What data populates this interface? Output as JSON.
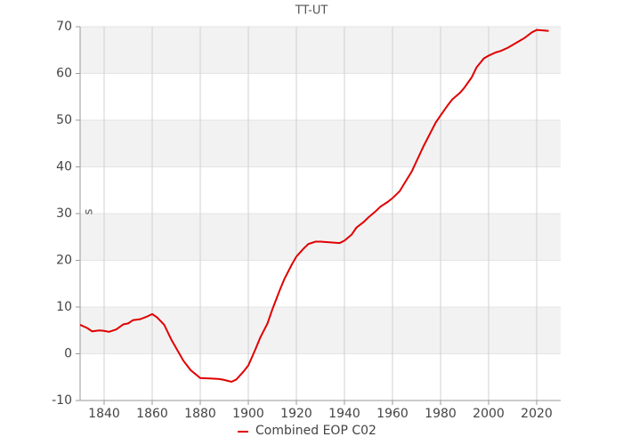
{
  "chart_data": {
    "type": "line",
    "title": "TT-UT",
    "y_label": "s",
    "x": [
      1830,
      1833,
      1835,
      1838,
      1840,
      1842,
      1845,
      1848,
      1850,
      1852,
      1855,
      1858,
      1860,
      1862,
      1865,
      1868,
      1870,
      1873,
      1876,
      1880,
      1885,
      1888,
      1890,
      1893,
      1895,
      1898,
      1900,
      1903,
      1905,
      1908,
      1910,
      1913,
      1915,
      1918,
      1920,
      1923,
      1925,
      1928,
      1930,
      1935,
      1938,
      1940,
      1943,
      1945,
      1948,
      1950,
      1953,
      1955,
      1958,
      1960,
      1963,
      1965,
      1968,
      1970,
      1973,
      1975,
      1978,
      1980,
      1983,
      1985,
      1988,
      1990,
      1993,
      1995,
      1998,
      2000,
      2003,
      2005,
      2008,
      2010,
      2013,
      2015,
      2018,
      2020,
      2023,
      2025
    ],
    "series": [
      {
        "name": "Combined EOP C02",
        "color": "#e00000",
        "values": [
          6.2,
          5.5,
          4.8,
          5.0,
          4.9,
          4.7,
          5.2,
          6.3,
          6.5,
          7.2,
          7.4,
          8.0,
          8.5,
          7.8,
          6.2,
          3.0,
          1.2,
          -1.5,
          -3.5,
          -5.2,
          -5.3,
          -5.4,
          -5.6,
          -6.0,
          -5.5,
          -3.8,
          -2.5,
          1.0,
          3.5,
          6.5,
          9.5,
          13.5,
          16.0,
          19.0,
          20.8,
          22.5,
          23.5,
          24.0,
          24.0,
          23.8,
          23.7,
          24.2,
          25.5,
          27.0,
          28.2,
          29.2,
          30.5,
          31.5,
          32.5,
          33.3,
          34.8,
          36.5,
          39.0,
          41.2,
          44.5,
          46.5,
          49.5,
          51.0,
          53.2,
          54.5,
          55.8,
          57.0,
          59.2,
          61.3,
          63.2,
          63.8,
          64.5,
          64.8,
          65.5,
          66.1,
          67.0,
          67.6,
          68.8,
          69.3,
          69.2,
          69.1
        ]
      }
    ],
    "xlim": [
      1830,
      2030
    ],
    "xticks": [
      1840,
      1860,
      1880,
      1900,
      1920,
      1940,
      1960,
      1980,
      2000,
      2020
    ],
    "ylim": [
      -10,
      70
    ],
    "yticks": [
      -10,
      0,
      10,
      20,
      30,
      40,
      50,
      60,
      70
    ],
    "grid": true
  }
}
